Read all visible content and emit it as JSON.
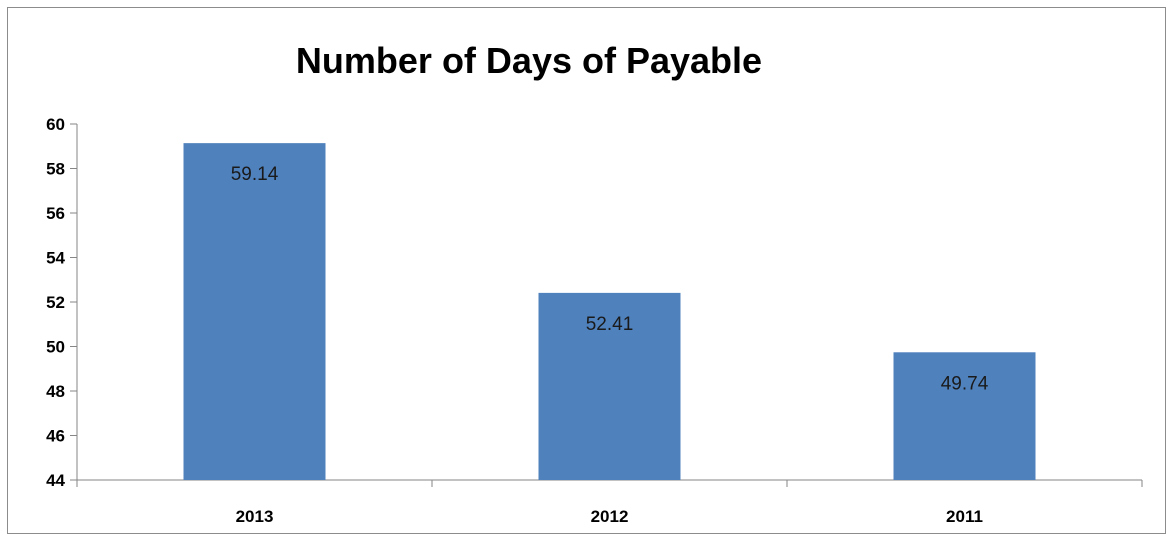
{
  "chart_data": {
    "type": "bar",
    "title": "Number of Days of Payable",
    "categories": [
      "2013",
      "2012",
      "2011"
    ],
    "values": [
      59.14,
      52.41,
      49.74
    ],
    "data_labels": [
      "59.14",
      "52.41",
      "49.74"
    ],
    "xlabel": "",
    "ylabel": "",
    "ylim": [
      44,
      60
    ],
    "yticks": [
      "44",
      "46",
      "48",
      "50",
      "52",
      "54",
      "56",
      "58",
      "60"
    ],
    "grid": false,
    "legend": "none",
    "bar_color": "#4f81bd"
  }
}
